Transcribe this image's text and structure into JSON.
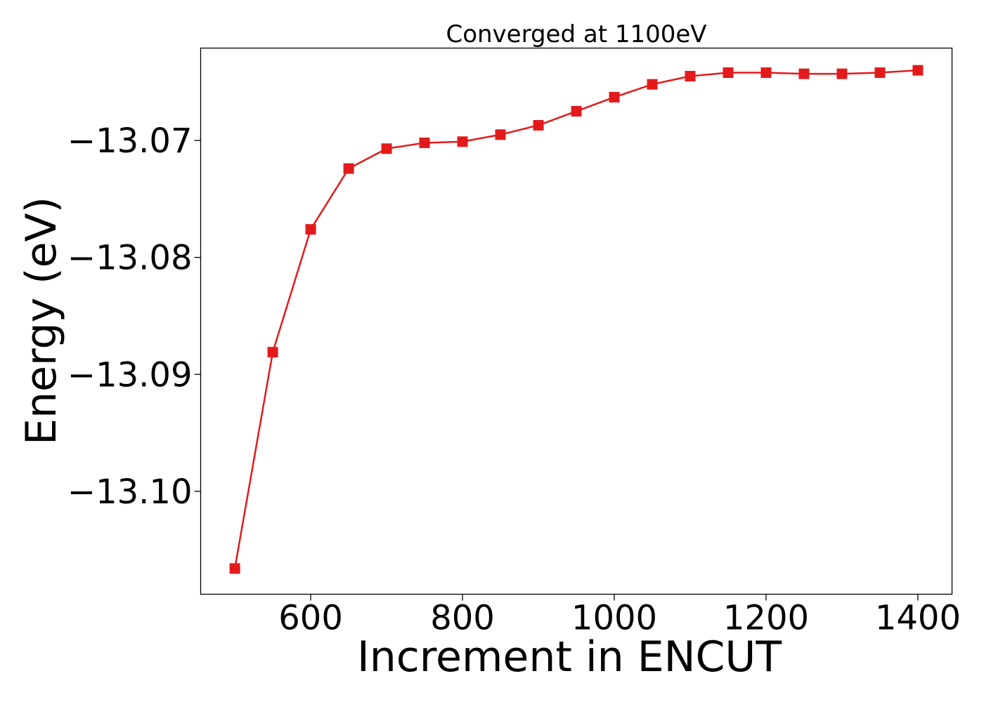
{
  "chart_data": {
    "type": "line",
    "title": "Converged at 1100eV",
    "xlabel": "Increment in ENCUT",
    "ylabel": "Energy (eV)",
    "xlim": [
      455,
      1445
    ],
    "ylim": [
      -13.1088,
      -13.0621
    ],
    "x_ticks": [
      600,
      800,
      1000,
      1200,
      1400
    ],
    "x_tick_labels": [
      "600",
      "800",
      "1000",
      "1200",
      "1400"
    ],
    "y_ticks": [
      -13.07,
      -13.08,
      -13.09,
      -13.1
    ],
    "y_tick_labels": [
      "−13.07",
      "−13.08",
      "−13.09",
      "−13.10"
    ],
    "grid": false,
    "series": [
      {
        "color": "#e31a1c",
        "marker": "square",
        "points": [
          {
            "x": 500,
            "y": -13.1066
          },
          {
            "x": 550,
            "y": -13.0881
          },
          {
            "x": 600,
            "y": -13.0776
          },
          {
            "x": 650,
            "y": -13.0724
          },
          {
            "x": 700,
            "y": -13.0707
          },
          {
            "x": 750,
            "y": -13.0702
          },
          {
            "x": 800,
            "y": -13.0701
          },
          {
            "x": 850,
            "y": -13.0695
          },
          {
            "x": 900,
            "y": -13.0687
          },
          {
            "x": 950,
            "y": -13.0675
          },
          {
            "x": 1000,
            "y": -13.0663
          },
          {
            "x": 1050,
            "y": -13.0652
          },
          {
            "x": 1100,
            "y": -13.0645
          },
          {
            "x": 1150,
            "y": -13.0642
          },
          {
            "x": 1200,
            "y": -13.0642
          },
          {
            "x": 1250,
            "y": -13.0643
          },
          {
            "x": 1300,
            "y": -13.0643
          },
          {
            "x": 1350,
            "y": -13.0642
          },
          {
            "x": 1400,
            "y": -13.064
          }
        ]
      }
    ]
  }
}
